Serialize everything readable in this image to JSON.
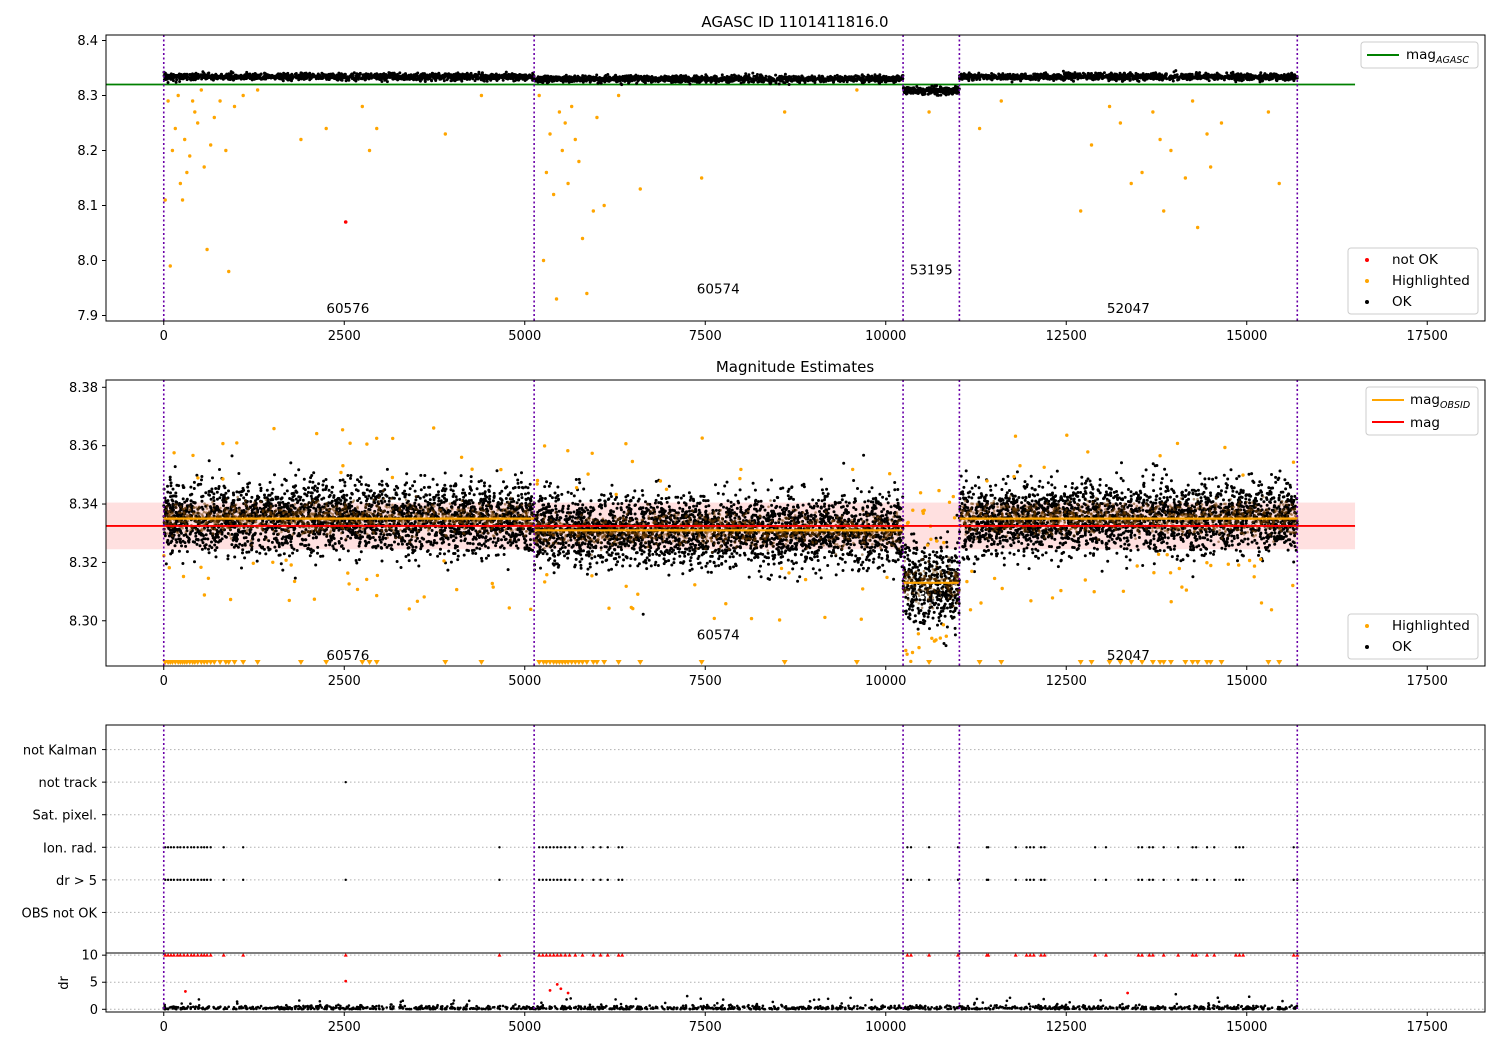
{
  "chart_data": [
    {
      "type": "scatter",
      "title": "AGASC ID 1101411816.0",
      "xlim": [
        -800,
        18300
      ],
      "ylim": [
        7.89,
        8.41
      ],
      "x_ticks": [
        0,
        2500,
        5000,
        7500,
        10000,
        12500,
        15000,
        17500
      ],
      "x_tick_labels": [
        "0",
        "2500",
        "5000",
        "7500",
        "10000",
        "12500",
        "15000",
        "17500"
      ],
      "y_ticks": [
        7.9,
        8.0,
        8.1,
        8.2,
        8.3,
        8.4
      ],
      "y_tick_labels": [
        "7.9",
        "8.0",
        "8.1",
        "8.2",
        "8.3",
        "8.4"
      ],
      "obsid_boundaries": [
        0,
        5130,
        10240,
        11020,
        15700
      ],
      "observations": [
        {
          "label": "60576",
          "x_start": 0,
          "x_end": 5130,
          "ok_mean": 8.334,
          "ok_spread": 0.005,
          "label_x": 2550,
          "label_y": 7.905
        },
        {
          "label": "60574",
          "x_start": 5130,
          "x_end": 10240,
          "ok_mean": 8.33,
          "ok_spread": 0.005,
          "label_x": 7680,
          "label_y": 7.94
        },
        {
          "label": "53195",
          "x_start": 10240,
          "x_end": 11020,
          "ok_mean": 8.309,
          "ok_spread": 0.006,
          "label_x": 10630,
          "label_y": 7.975
        },
        {
          "label": "52047",
          "x_start": 11020,
          "x_end": 15700,
          "ok_mean": 8.334,
          "ok_spread": 0.005,
          "label_x": 13360,
          "label_y": 7.905
        }
      ],
      "reference_lines": [
        {
          "name": "mag_AGASC",
          "y": 8.32,
          "x_start": -800,
          "x_end": 16500,
          "color": "#008000"
        }
      ],
      "series_colors": {
        "not_ok": "#ff0000",
        "highlighted": "#ffa500",
        "ok": "#000000"
      },
      "not_ok_points": [
        {
          "x": 2520,
          "y": 8.07
        }
      ],
      "highlighted_points": [
        {
          "x": 20,
          "y": 8.11
        },
        {
          "x": 60,
          "y": 8.29
        },
        {
          "x": 90,
          "y": 7.99
        },
        {
          "x": 120,
          "y": 8.2
        },
        {
          "x": 160,
          "y": 8.24
        },
        {
          "x": 200,
          "y": 8.3
        },
        {
          "x": 230,
          "y": 8.14
        },
        {
          "x": 260,
          "y": 8.11
        },
        {
          "x": 290,
          "y": 8.22
        },
        {
          "x": 320,
          "y": 8.16
        },
        {
          "x": 360,
          "y": 8.19
        },
        {
          "x": 400,
          "y": 8.29
        },
        {
          "x": 430,
          "y": 8.27
        },
        {
          "x": 470,
          "y": 8.25
        },
        {
          "x": 520,
          "y": 8.31
        },
        {
          "x": 560,
          "y": 8.17
        },
        {
          "x": 600,
          "y": 8.02
        },
        {
          "x": 650,
          "y": 8.21
        },
        {
          "x": 700,
          "y": 8.26
        },
        {
          "x": 780,
          "y": 8.29
        },
        {
          "x": 860,
          "y": 8.2
        },
        {
          "x": 900,
          "y": 7.98
        },
        {
          "x": 980,
          "y": 8.28
        },
        {
          "x": 1100,
          "y": 8.3
        },
        {
          "x": 1300,
          "y": 8.31
        },
        {
          "x": 1900,
          "y": 8.22
        },
        {
          "x": 2250,
          "y": 8.24
        },
        {
          "x": 2750,
          "y": 8.28
        },
        {
          "x": 2950,
          "y": 8.24
        },
        {
          "x": 2850,
          "y": 8.2
        },
        {
          "x": 3900,
          "y": 8.23
        },
        {
          "x": 4400,
          "y": 8.3
        },
        {
          "x": 5200,
          "y": 8.3
        },
        {
          "x": 5260,
          "y": 8.0
        },
        {
          "x": 5300,
          "y": 8.16
        },
        {
          "x": 5350,
          "y": 8.23
        },
        {
          "x": 5400,
          "y": 8.12
        },
        {
          "x": 5440,
          "y": 7.93
        },
        {
          "x": 5480,
          "y": 8.27
        },
        {
          "x": 5520,
          "y": 8.2
        },
        {
          "x": 5560,
          "y": 8.25
        },
        {
          "x": 5600,
          "y": 8.14
        },
        {
          "x": 5650,
          "y": 8.28
        },
        {
          "x": 5700,
          "y": 8.22
        },
        {
          "x": 5750,
          "y": 8.18
        },
        {
          "x": 5800,
          "y": 8.04
        },
        {
          "x": 5860,
          "y": 7.94
        },
        {
          "x": 5950,
          "y": 8.09
        },
        {
          "x": 6000,
          "y": 8.26
        },
        {
          "x": 6100,
          "y": 8.1
        },
        {
          "x": 6300,
          "y": 8.3
        },
        {
          "x": 6600,
          "y": 8.13
        },
        {
          "x": 7450,
          "y": 8.15
        },
        {
          "x": 8600,
          "y": 8.27
        },
        {
          "x": 9600,
          "y": 8.31
        },
        {
          "x": 10600,
          "y": 8.27
        },
        {
          "x": 11300,
          "y": 8.24
        },
        {
          "x": 11600,
          "y": 8.29
        },
        {
          "x": 12700,
          "y": 8.09
        },
        {
          "x": 12850,
          "y": 8.21
        },
        {
          "x": 13100,
          "y": 8.28
        },
        {
          "x": 13250,
          "y": 8.25
        },
        {
          "x": 13400,
          "y": 8.14
        },
        {
          "x": 13550,
          "y": 8.16
        },
        {
          "x": 13700,
          "y": 8.27
        },
        {
          "x": 13800,
          "y": 8.22
        },
        {
          "x": 13850,
          "y": 8.09
        },
        {
          "x": 13950,
          "y": 8.2
        },
        {
          "x": 14150,
          "y": 8.15
        },
        {
          "x": 14250,
          "y": 8.29
        },
        {
          "x": 14320,
          "y": 8.06
        },
        {
          "x": 14450,
          "y": 8.23
        },
        {
          "x": 14500,
          "y": 8.17
        },
        {
          "x": 14650,
          "y": 8.25
        },
        {
          "x": 15300,
          "y": 8.27
        },
        {
          "x": 15450,
          "y": 8.14
        }
      ],
      "legend": {
        "position": "top-right",
        "entries": [
          "mag_AGASC"
        ]
      },
      "legend2": {
        "position": "bottom-right",
        "entries": [
          "not OK",
          "Highlighted",
          "OK"
        ]
      }
    },
    {
      "type": "scatter",
      "title": "Magnitude Estimates",
      "xlim": [
        -800,
        18300
      ],
      "ylim": [
        8.2845,
        8.3825
      ],
      "x_ticks": [
        0,
        2500,
        5000,
        7500,
        10000,
        12500,
        15000,
        17500
      ],
      "x_tick_labels": [
        "0",
        "2500",
        "5000",
        "7500",
        "10000",
        "12500",
        "15000",
        "17500"
      ],
      "y_ticks": [
        8.3,
        8.32,
        8.34,
        8.36,
        8.38
      ],
      "y_tick_labels": [
        "8.30",
        "8.32",
        "8.34",
        "8.36",
        "8.38"
      ],
      "obsid_boundaries": [
        0,
        5130,
        10240,
        11020,
        15700
      ],
      "observations": [
        {
          "label": "60576",
          "x_start": 0,
          "x_end": 5130,
          "mag_obsid": 8.335,
          "ok_spread": 0.006,
          "label_x": 2550,
          "label_y": 8.2865
        },
        {
          "label": "60574",
          "x_start": 5130,
          "x_end": 10240,
          "mag_obsid": 8.331,
          "ok_spread": 0.006,
          "label_x": 7680,
          "label_y": 8.2935
        },
        {
          "label": "53195",
          "x_start": 10240,
          "x_end": 11020,
          "mag_obsid": 8.313,
          "ok_spread": 0.007,
          "label_x": 10630,
          "label_y": 8.307
        },
        {
          "label": "52047",
          "x_start": 11020,
          "x_end": 15700,
          "mag_obsid": 8.335,
          "ok_spread": 0.006,
          "label_x": 13360,
          "label_y": 8.2865
        }
      ],
      "mag": {
        "value": 8.3325,
        "band": [
          8.3245,
          8.3405
        ],
        "x_start": -800,
        "x_end": 16500,
        "color": "#ff0000"
      },
      "series_colors": {
        "mag_obsid": "#ffa500",
        "highlighted": "#ffa500",
        "ok": "#000000"
      },
      "legend": {
        "position": "top-right",
        "entries": [
          "mag_OBSID",
          "mag"
        ]
      },
      "legend2": {
        "position": "bottom-right",
        "entries": [
          "Highlighted",
          "OK"
        ]
      }
    },
    {
      "type": "scatter",
      "xlim": [
        -800,
        18300
      ],
      "categories": [
        "not Kalman",
        "not track",
        "Sat. pixel.",
        "Ion. rad.",
        "dr > 5",
        "OBS not OK"
      ],
      "flag_points": {
        "not track": [
          2520
        ],
        "Ion. rad.": [
          20,
          60,
          100,
          140,
          190,
          230,
          280,
          330,
          380,
          420,
          470,
          520,
          560,
          600,
          650,
          830,
          1100,
          4650,
          5200,
          5250,
          5300,
          5350,
          5400,
          5450,
          5500,
          5560,
          5620,
          5700,
          5800,
          5950,
          6050,
          6150,
          6300,
          6350,
          10300,
          10350,
          10600,
          11000,
          11400,
          11420,
          11800,
          11950,
          12000,
          12050,
          12150,
          12200,
          12900,
          13050,
          13500,
          13550,
          13650,
          13700,
          13850,
          14050,
          14250,
          14300,
          14450,
          14550,
          14850,
          14900,
          14950,
          15650,
          15700
        ],
        "dr > 5": [
          20,
          60,
          100,
          140,
          190,
          230,
          280,
          330,
          380,
          420,
          470,
          520,
          560,
          600,
          650,
          830,
          1100,
          2520,
          4650,
          5200,
          5250,
          5300,
          5350,
          5400,
          5450,
          5500,
          5560,
          5620,
          5700,
          5800,
          5950,
          6050,
          6150,
          6300,
          6350,
          10300,
          10350,
          10600,
          11000,
          11400,
          11420,
          11800,
          11950,
          12000,
          12050,
          12150,
          12200,
          12900,
          13050,
          13500,
          13550,
          13650,
          13700,
          13850,
          14050,
          14250,
          14300,
          14450,
          14550,
          14850,
          14900,
          14950,
          15650,
          15700
        ]
      }
    },
    {
      "type": "scatter",
      "xlim": [
        -800,
        18300
      ],
      "ylim": [
        -0.5,
        10.4
      ],
      "ylabel": "dr",
      "x_ticks": [
        0,
        2500,
        5000,
        7500,
        10000,
        12500,
        15000,
        17500
      ],
      "x_tick_labels": [
        "0",
        "2500",
        "5000",
        "7500",
        "10000",
        "12500",
        "15000",
        "17500"
      ],
      "y_ticks": [
        0,
        5,
        10
      ],
      "y_tick_labels": [
        "0",
        "5",
        "10"
      ],
      "obsid_boundaries": [
        0,
        5130,
        10240,
        11020,
        15700
      ],
      "clipped_value": 10,
      "series_colors": {
        "ok": "#000000",
        "flagged": "#ff0000"
      },
      "flagged_points": [
        {
          "x": 2520,
          "y": 5.2
        },
        {
          "x": 300,
          "y": 3.3
        },
        {
          "x": 5450,
          "y": 4.6
        },
        {
          "x": 5500,
          "y": 3.8
        },
        {
          "x": 5600,
          "y": 3.0
        },
        {
          "x": 5350,
          "y": 3.5
        },
        {
          "x": 13350,
          "y": 3.0
        }
      ]
    }
  ]
}
